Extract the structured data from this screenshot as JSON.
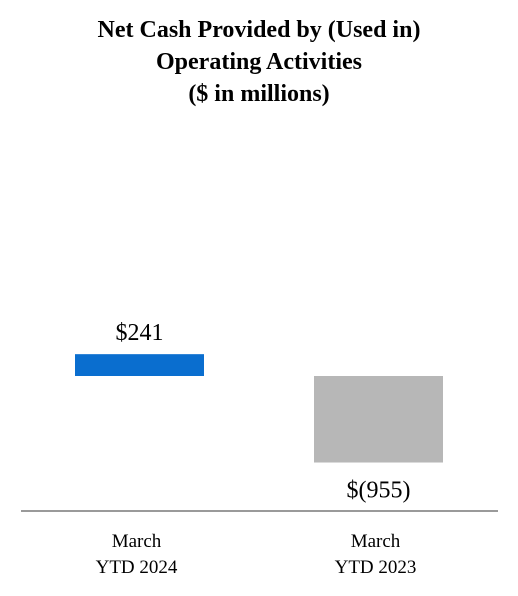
{
  "chart_data": {
    "type": "bar",
    "title": [
      "Net Cash Provided by (Used in)",
      "Operating Activities",
      "($ in millions)"
    ],
    "xlabel": "",
    "ylabel": "",
    "grid": false,
    "legend": "none",
    "categories": [
      {
        "line1": "March",
        "line2": "YTD 2024"
      },
      {
        "line1": "March",
        "line2": "YTD 2023"
      }
    ],
    "values": [
      241,
      -955
    ],
    "data_labels": [
      "$241",
      "$(955)"
    ],
    "colors": [
      "#0a6ecf",
      "#b7b7b7"
    ],
    "axis_color": "#9a9a9a"
  }
}
